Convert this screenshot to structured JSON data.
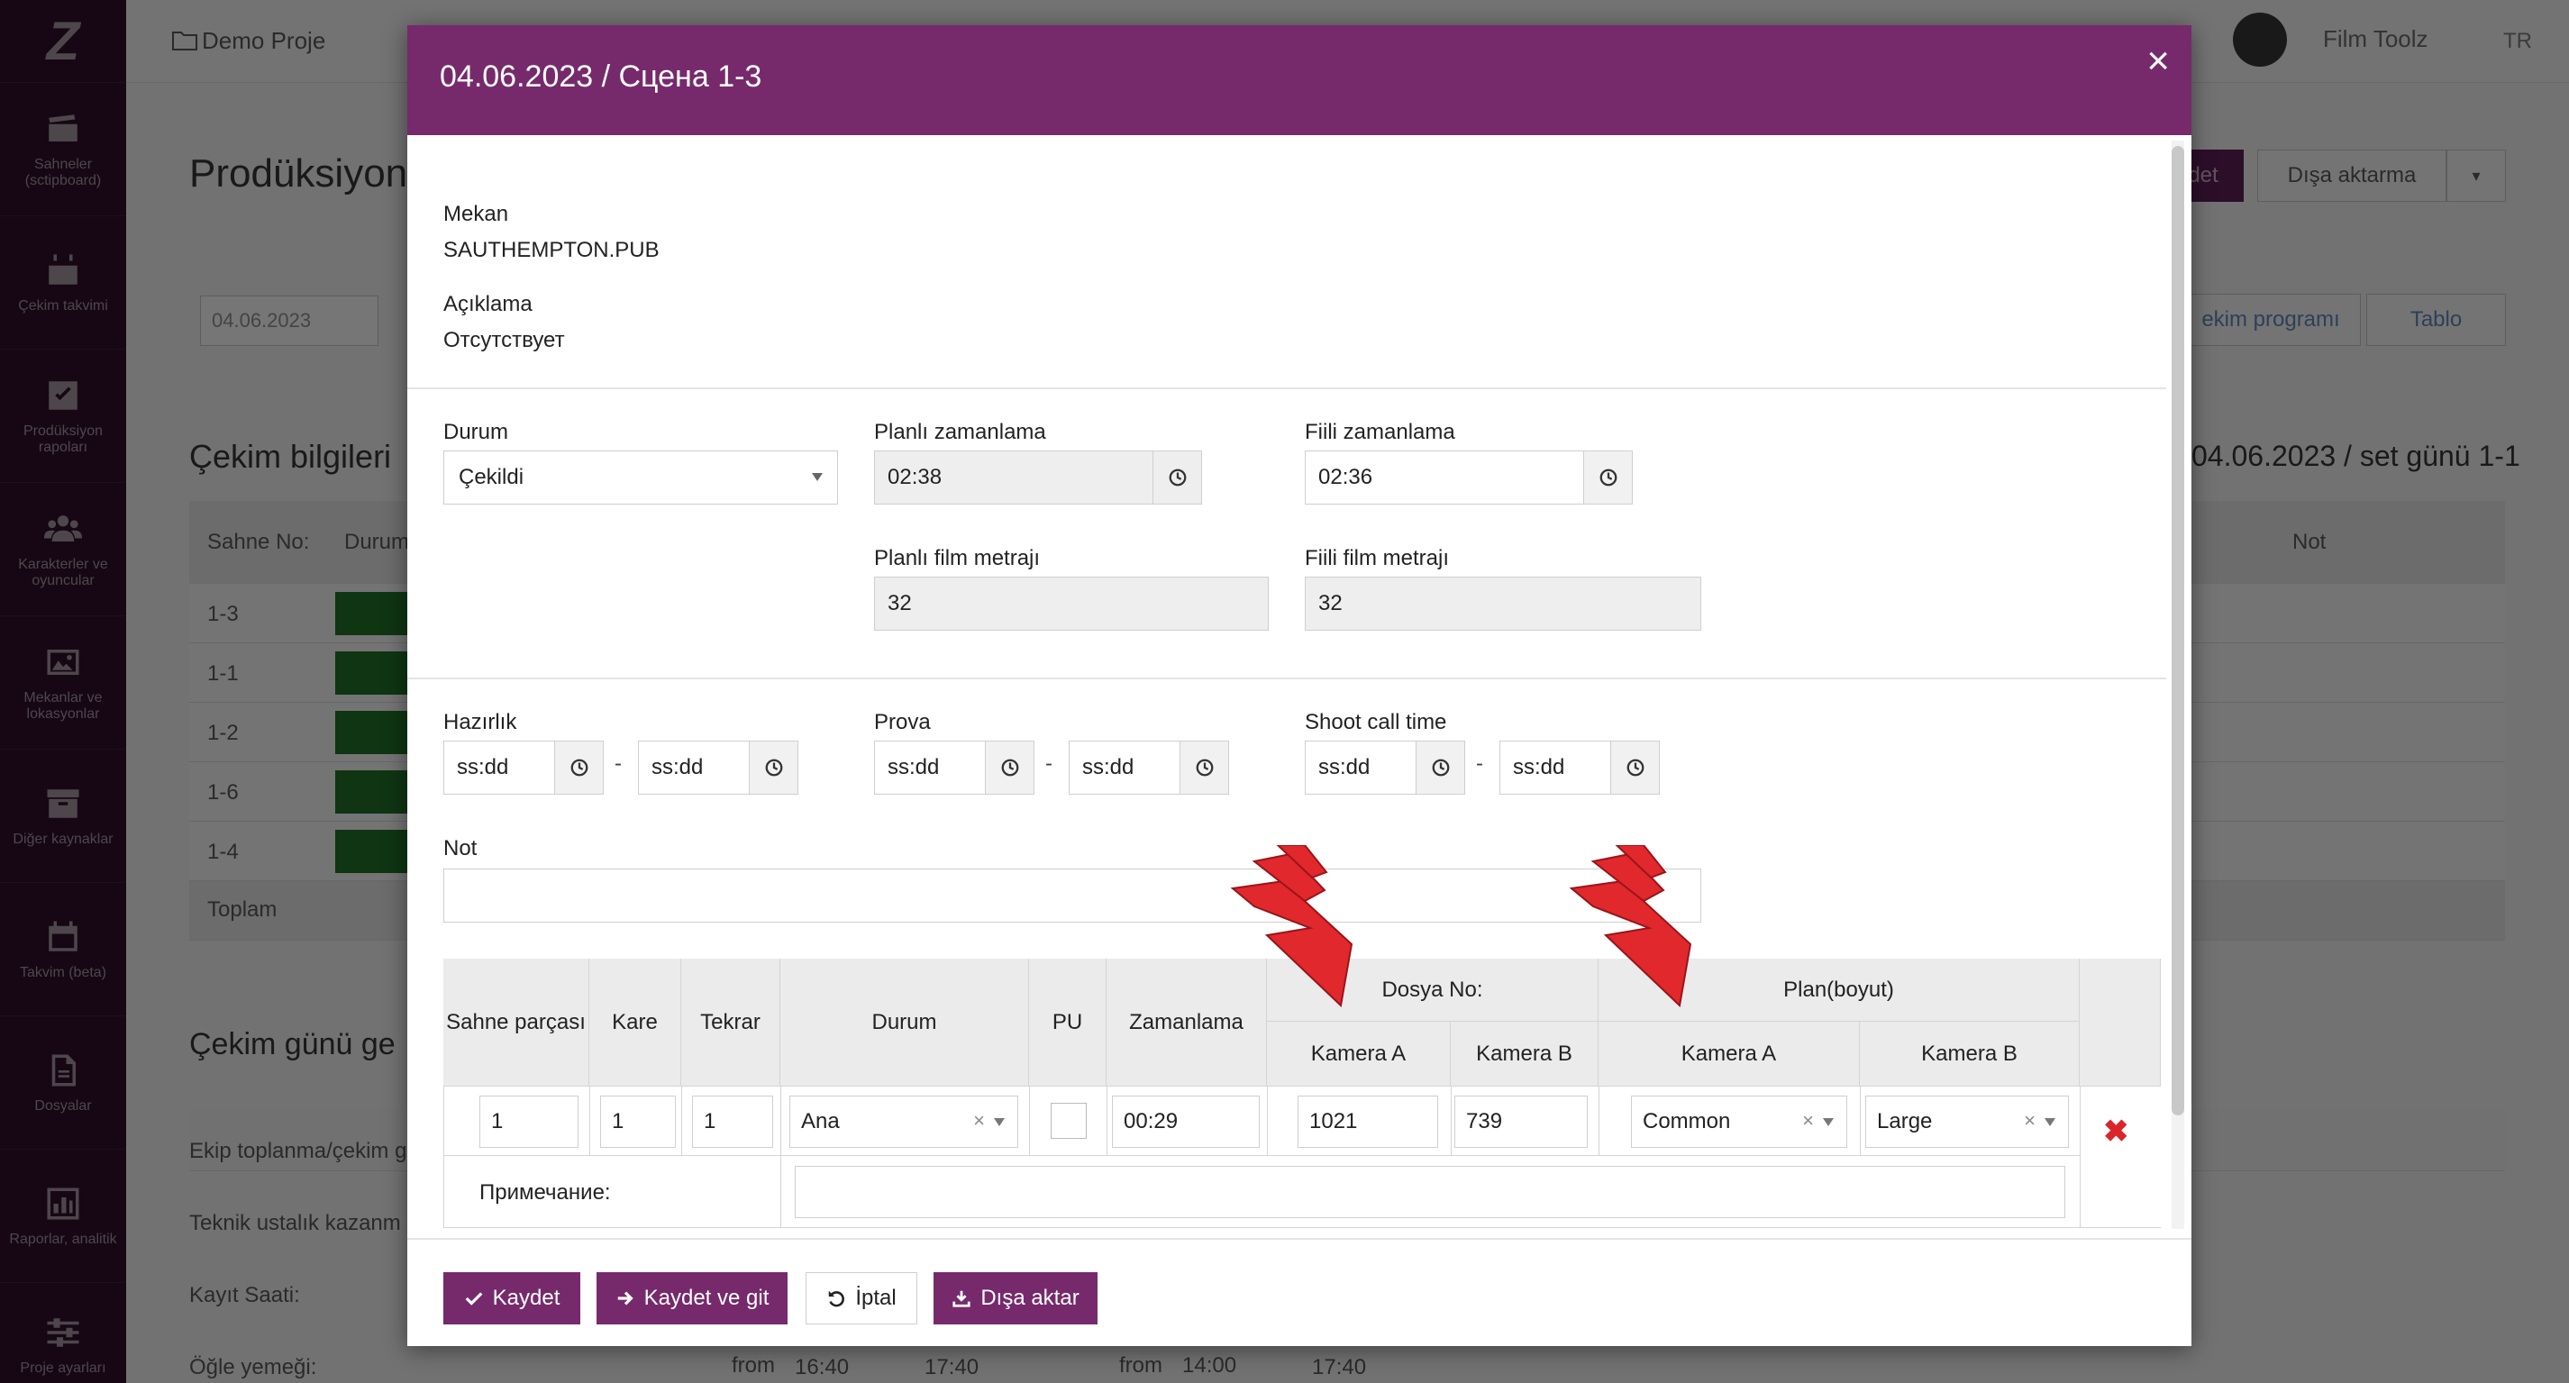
{
  "app": {
    "logo": "Z",
    "project": "Demo Proje",
    "user": "Film Toolz",
    "lang": "TR"
  },
  "sidebar": {
    "items": [
      {
        "icon": "clapperboard-icon",
        "label": "Sahneler (sctipboard)"
      },
      {
        "icon": "calendar-icon",
        "label": "Çekim takvimi"
      },
      {
        "icon": "checkbox-icon",
        "label": "Prodüksiyon rapoları"
      },
      {
        "icon": "users-icon",
        "label": "Karakterler ve oyuncular"
      },
      {
        "icon": "image-icon",
        "label": "Mekanlar ve lokasyonlar"
      },
      {
        "icon": "archive-icon",
        "label": "Diğer kaynaklar"
      },
      {
        "icon": "calendar-icon",
        "label": "Takvim (beta)"
      },
      {
        "icon": "file-icon",
        "label": "Dosyalar"
      },
      {
        "icon": "chart-icon",
        "label": "Raporlar, analitik"
      },
      {
        "icon": "sliders-icon",
        "label": "Proje ayarları"
      }
    ]
  },
  "background": {
    "page_title": "Prodüksiyon",
    "date": "04.06.2023",
    "section_title": "Çekim bilgileri",
    "right_title": "04.06.2023 / set günü 1-1",
    "col_scene": "Sahne No:",
    "col_status": "Durum",
    "col_note": "Not",
    "rows": [
      "1-3",
      "1-1",
      "1-2",
      "1-6",
      "1-4"
    ],
    "total": "Toplam",
    "day_title": "Çekim günü ge",
    "day_rows": [
      "Ekip toplanma/çekim g",
      "Teknik ustalık kazanm",
      "Kayıt Saati:",
      "Öğle yemeği:"
    ],
    "lunch": {
      "from1": "from",
      "t1": "16:40",
      "t2": "17:40",
      "from2": "from",
      "t3": "14:00",
      "t4": "17:40"
    },
    "btn_save": "det",
    "btn_export": "Dışa aktarma",
    "btn_program": "ekim programı",
    "btn_table": "Tablo"
  },
  "modal": {
    "title": "04.06.2023 / Сцена 1-3",
    "location_label": "Mekan",
    "location_value": "SAUTHEMPTON.PUB",
    "desc_label": "Açıklama",
    "desc_value": "Отсутствует",
    "status_label": "Durum",
    "status_value": "Çekildi",
    "planned_time_label": "Planlı zamanlama",
    "planned_time_value": "02:38",
    "actual_time_label": "Fiili zamanlama",
    "actual_time_value": "02:36",
    "planned_footage_label": "Planlı film metrajı",
    "planned_footage_value": "32",
    "actual_footage_label": "Fiili film metrajı",
    "actual_footage_value": "32",
    "prep_label": "Hazırlık",
    "rehearsal_label": "Prova",
    "shoot_call_label": "Shoot call time",
    "time_placeholder": "ss:dd",
    "range_sep": "-",
    "note_label": "Not",
    "table": {
      "headers": {
        "part": "Sahne parçası",
        "frame": "Kare",
        "take": "Tekrar",
        "status": "Durum",
        "pu": "PU",
        "timing": "Zamanlama",
        "file_no": "Dosya No:",
        "plan": "Plan(boyut)",
        "cam_a": "Kamera A",
        "cam_b": "Kamera B"
      },
      "row": {
        "part": "1",
        "frame": "1",
        "take": "1",
        "status": "Ana",
        "timing": "00:29",
        "file_a": "1021",
        "file_b": "739",
        "plan_a": "Common",
        "plan_b": "Large",
        "clear": "×"
      },
      "note_label": "Примечание:",
      "delete": "✖"
    },
    "buttons": {
      "save": "Kaydet",
      "save_go": "Kaydet ve git",
      "cancel": "İptal",
      "export": "Dışa aktar"
    },
    "close": "×"
  },
  "colors": {
    "accent": "#762a6c",
    "sidebar": "#2f0f28",
    "status_green": "#1e6a26",
    "arrow_red": "#e0282d",
    "delete_red": "#d9262b"
  }
}
